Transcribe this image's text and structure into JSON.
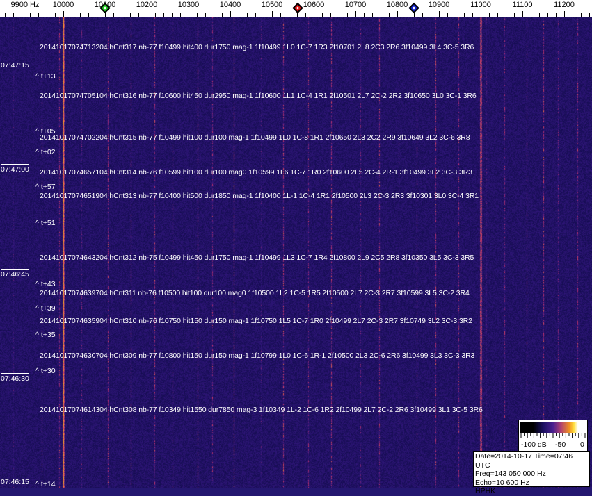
{
  "axis": {
    "unit_label": "9900 Hz",
    "ticks": [
      "10000",
      "10100",
      "10200",
      "10300",
      "10400",
      "10500",
      "10600",
      "10700",
      "10800",
      "10900",
      "11000",
      "11100",
      "11200"
    ],
    "markers": [
      {
        "name": "green-marker",
        "freq_hz": 10100,
        "color": "#22cc22"
      },
      {
        "name": "red-marker",
        "freq_hz": 10562,
        "color": "#dd1111"
      },
      {
        "name": "blue-marker",
        "freq_hz": 10840,
        "color": "#1122cc"
      }
    ]
  },
  "waterfall": {
    "background_color": "#241770",
    "strong_lines_hz": [
      10000,
      11000
    ],
    "time_labels": [
      "07:47:15",
      "07:47:00",
      "07:46:45",
      "07:46:30",
      "07:46:15"
    ],
    "t_marks": [
      "^ t+13",
      "^ t+05",
      "^ t+02",
      "^ t+57",
      "^ t+51",
      "^ t+43",
      "^ t+39",
      "^ t+35",
      "^ t+30",
      "^ t+14"
    ],
    "detections": [
      "20141017074713204 hCnt317 nb-77 f10499 hit400 dur1750 mag-1 1f10499 1L0 1C-7 1R3 2f10701 2L8 2C3 2R6 3f10499 3L4 3C-5 3R6",
      "20141017074705104 hCnt316 nb-77 f10600 hit450 dur2950 mag-1 1f10600 1L1 1C-4 1R1 2f10501 2L7 2C-2 2R2 3f10650 3L0 3C-1 3R6",
      "20141017074702204 hCnt315 nb-77 f10499 hit100 dur100 mag-1 1f10499 1L0 1C-8 1R1 2f10650 2L3 2C2 2R9 3f10649 3L2 3C-6 3R8",
      "20141017074657104 hCnt314 nb-76 f10599 hit100 dur100 mag0 1f10599 1L6 1C-7 1R0 2f10600 2L5 2C-4 2R-1 3f10499 3L2 3C-3 3R3",
      "20141017074651904 hCnt313 nb-77 f10400 hit500 dur1850 mag-1 1f10400 1L-1 1C-4 1R1 2f10500 2L3 2C-3 2R3 3f10301 3L0 3C-4 3R1",
      "20141017074643204 hCnt312 nb-75 f10499 hit450 dur1750 mag-1 1f10499 1L3 1C-7 1R4 2f10800 2L9 2C5 2R8 3f10350 3L5 3C-3 3R5",
      "20141017074639704 hCnt311 nb-76 f10500 hit100 dur100 mag0 1f10500 1L2 1C-5 1R5 2f10500 2L7 2C-3 2R7 3f10599 3L5 3C-2 3R4",
      "20141017074635904 hCnt310 nb-76 f10750 hit150 dur150 mag-1 1f10750 1L5 1C-7 1R0 2f10499 2L7 2C-3 2R7 3f10749 3L2 3C-3 3R2",
      "20141017074630704 hCnt309 nb-77 f10800 hit150 dur150 mag-1 1f10799 1L0 1C-6 1R-1 2f10500 2L3 2C-6 2R6 3f10499 3L3 3C-3 3R3",
      "20141017074614304 hCnt308 nb-77 f10349 hit1550 dur7850 mag-3 1f10349 1L-2 1C-6 1R2 2f10499 2L7 2C-2 2R6 3f10499 3L1 3C-5 3R6"
    ]
  },
  "color_scale": {
    "labels": [
      "-100 dB",
      "-50",
      "0"
    ]
  },
  "info": {
    "date_time": "Date=2014-10-17 Time=07:46 UTC",
    "freq": "Freq=143 050 000 Hz",
    "echo": "Echo=10 600 Hz",
    "station": "HPHK"
  }
}
